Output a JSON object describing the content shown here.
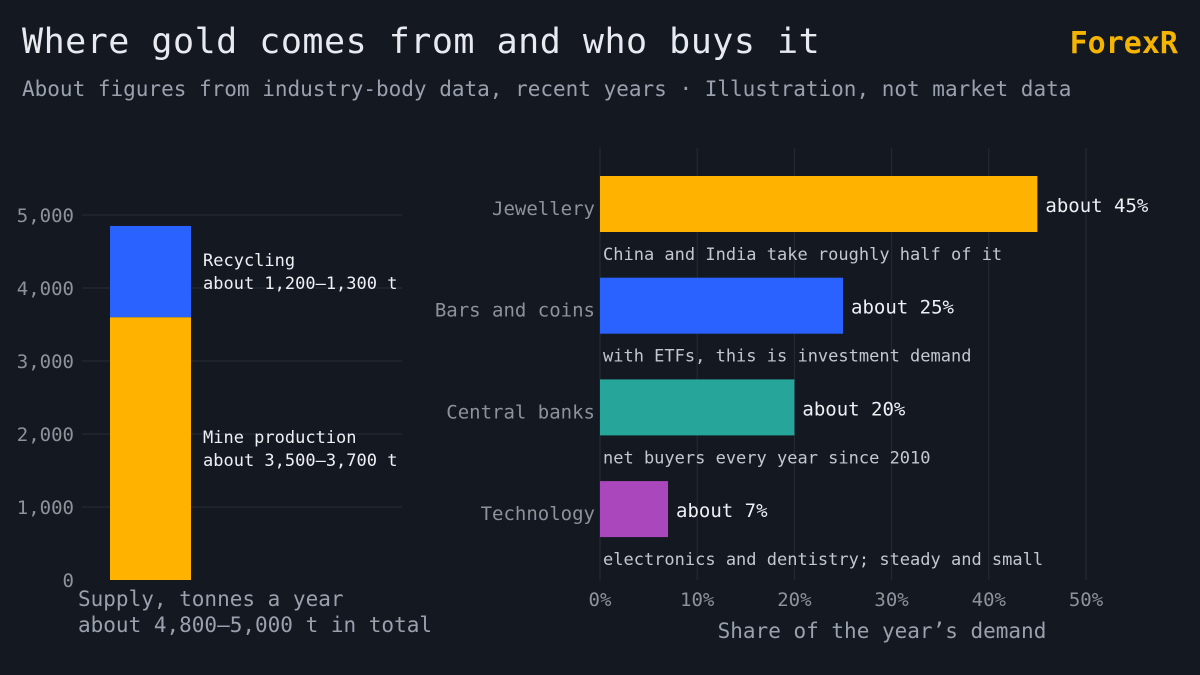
{
  "header": {
    "title": "Where gold comes from and who buys it",
    "subtitle": "About figures from industry-body data, recent years · Illustration, not market data",
    "brand": "ForexR"
  },
  "colors": {
    "background": "#141821",
    "gold": "#ffb300",
    "blue": "#2962ff",
    "teal": "#26a69a",
    "purple": "#ab47bc",
    "brand": "#f5b400"
  },
  "chart_data": [
    {
      "type": "bar",
      "stacked": true,
      "categories": [
        ""
      ],
      "series": [
        {
          "name": "Mine production",
          "values": [
            3600
          ],
          "label": [
            "Mine production",
            "about 3,500–3,700 t"
          ],
          "color": "#ffb300"
        },
        {
          "name": "Recycling",
          "values": [
            1250
          ],
          "label": [
            "Recycling",
            "about 1,200–1,300 t"
          ],
          "color": "#2962ff"
        }
      ],
      "ylim": [
        0,
        5000
      ],
      "yticks": [
        "0",
        "1,000",
        "2,000",
        "3,000",
        "4,000",
        "5,000"
      ],
      "xlabel": [
        "Supply, tonnes a year",
        "about 4,800–5,000 t in total"
      ],
      "grid": true
    },
    {
      "type": "bar",
      "orientation": "horizontal",
      "categories": [
        "Jewellery",
        "Bars and coins",
        "Central banks",
        "Technology"
      ],
      "values": [
        45,
        25,
        20,
        7
      ],
      "value_labels": [
        "about 45%",
        "about 25%",
        "about 20%",
        "about 7%"
      ],
      "notes": [
        "China and India take roughly half of it",
        "with ETFs, this is investment demand",
        "net buyers every year since 2010",
        "electronics and dentistry; steady and small"
      ],
      "colors": [
        "#ffb300",
        "#2962ff",
        "#26a69a",
        "#ab47bc"
      ],
      "xlim": [
        0,
        50
      ],
      "xticks": [
        "0%",
        "10%",
        "20%",
        "30%",
        "40%",
        "50%"
      ],
      "xlabel": "Share of the year’s demand",
      "grid": true
    }
  ]
}
